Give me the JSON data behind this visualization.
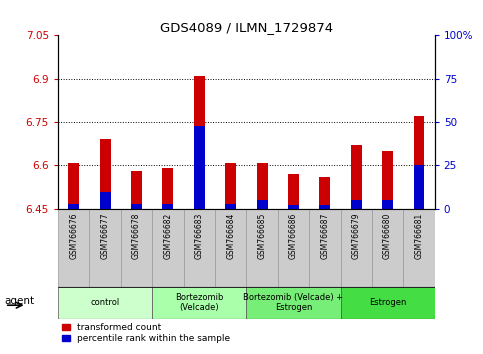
{
  "title": "GDS4089 / ILMN_1729874",
  "samples": [
    "GSM766676",
    "GSM766677",
    "GSM766678",
    "GSM766682",
    "GSM766683",
    "GSM766684",
    "GSM766685",
    "GSM766686",
    "GSM766687",
    "GSM766679",
    "GSM766680",
    "GSM766681"
  ],
  "transformed_count": [
    6.61,
    6.69,
    6.58,
    6.59,
    6.91,
    6.61,
    6.61,
    6.57,
    6.56,
    6.67,
    6.65,
    6.77
  ],
  "percentile_rank": [
    3,
    10,
    3,
    3,
    48,
    3,
    5,
    2,
    2,
    5,
    5,
    25
  ],
  "ylim_left": [
    6.45,
    7.05
  ],
  "ylim_right": [
    0,
    100
  ],
  "yticks_left": [
    6.45,
    6.6,
    6.75,
    6.9,
    7.05
  ],
  "yticks_right": [
    0,
    25,
    50,
    75,
    100
  ],
  "ytick_labels_left": [
    "6.45",
    "6.6",
    "6.75",
    "6.9",
    "7.05"
  ],
  "ytick_labels_right": [
    "0",
    "25",
    "50",
    "75",
    "100%"
  ],
  "groups": [
    {
      "label": "control",
      "indices": [
        0,
        1,
        2
      ],
      "color": "#ccffcc"
    },
    {
      "label": "Bortezomib\n(Velcade)",
      "indices": [
        3,
        4,
        5
      ],
      "color": "#aaffaa"
    },
    {
      "label": "Bortezomib (Velcade) +\nEstrogen",
      "indices": [
        6,
        7,
        8
      ],
      "color": "#77ee77"
    },
    {
      "label": "Estrogen",
      "indices": [
        9,
        10,
        11
      ],
      "color": "#44dd44"
    }
  ],
  "bar_color_red": "#cc0000",
  "bar_color_blue": "#0000cc",
  "baseline": 6.45,
  "bar_width": 0.35,
  "background_color": "#ffffff",
  "tick_color_left": "#cc0000",
  "tick_color_right": "#0000cc",
  "agent_label": "agent",
  "legend_red": "transformed count",
  "legend_blue": "percentile rank within the sample",
  "xlabel_bg": "#cccccc"
}
